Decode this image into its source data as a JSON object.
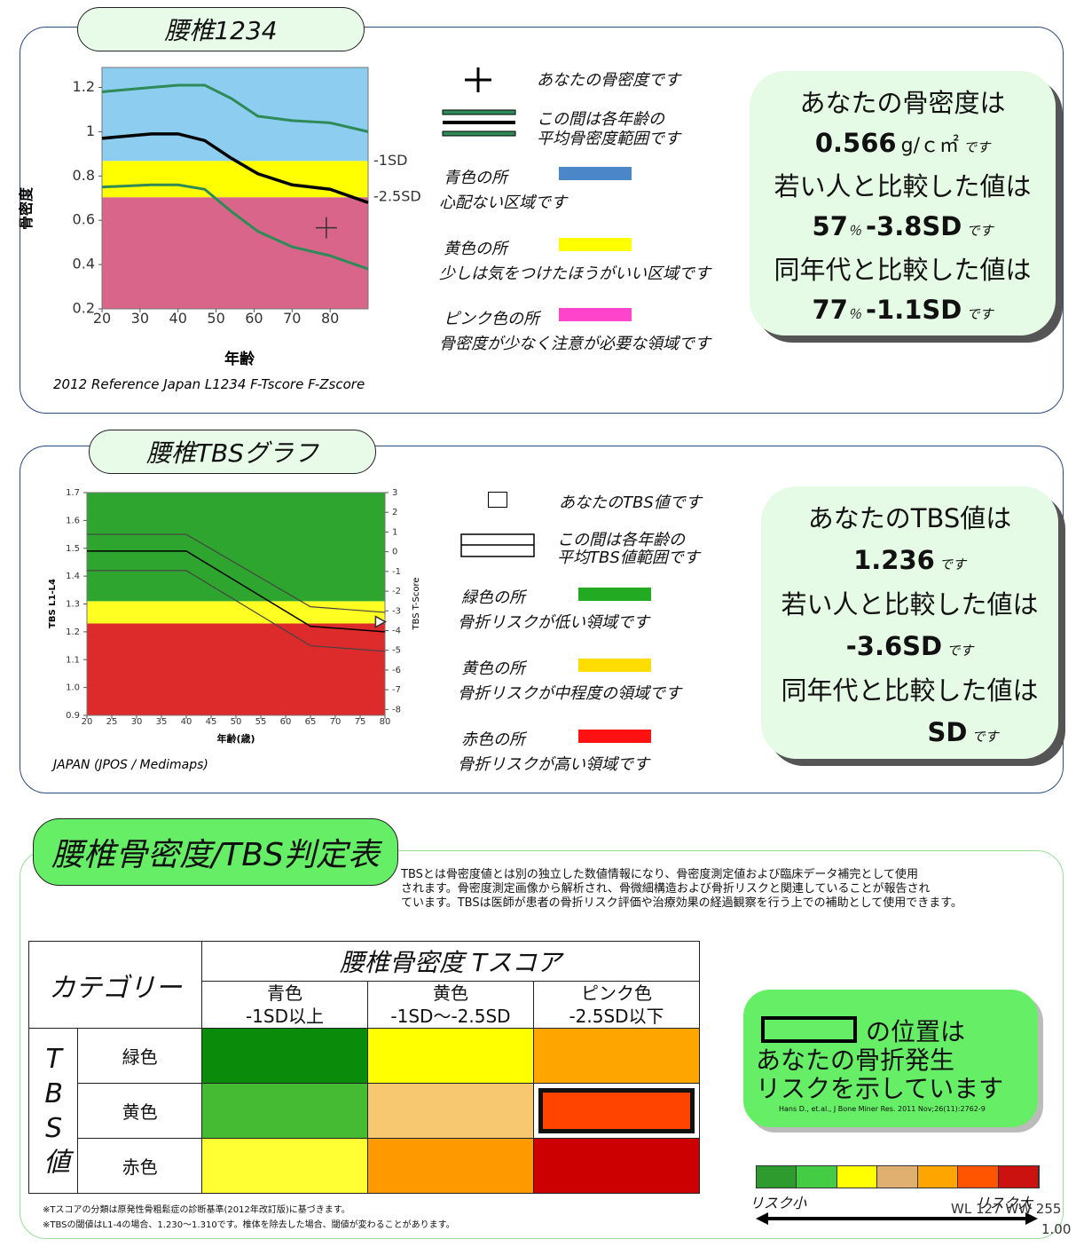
{
  "chart_data": [
    {
      "type": "line",
      "ylabel": "骨密度",
      "xlabel": "年齢",
      "note": "2012 Reference Japan L1234 F-Tscore F-Zscore",
      "xlim": [
        20,
        90
      ],
      "ylim": [
        0.2,
        1.29
      ],
      "xticks": [
        20,
        30,
        40,
        50,
        60,
        70,
        80
      ],
      "yticks": [
        0.2,
        0.4,
        0.6,
        0.8,
        1,
        1.2
      ],
      "zones": [
        {
          "ymin": 0.2,
          "ymax": 0.704,
          "color": "#d9668a"
        },
        {
          "ymin": 0.704,
          "ymax": 0.868,
          "color": "#ffff00",
          "label": "-2.5SD"
        },
        {
          "ymin": 0.868,
          "ymax": 1.29,
          "color": "#8ccdf0",
          "label": "-1SD"
        }
      ],
      "x": [
        20,
        33,
        40,
        47,
        54,
        61,
        70,
        80,
        90
      ],
      "series": [
        {
          "color": "#2e8b57",
          "values": [
            1.18,
            1.2,
            1.21,
            1.21,
            1.15,
            1.07,
            1.05,
            1.04,
            1.0
          ]
        },
        {
          "color": "#000000",
          "values": [
            0.97,
            0.99,
            0.99,
            0.96,
            0.88,
            0.81,
            0.76,
            0.74,
            0.68
          ]
        },
        {
          "color": "#2e8b57",
          "values": [
            0.75,
            0.76,
            0.76,
            0.74,
            0.64,
            0.55,
            0.48,
            0.44,
            0.38
          ]
        }
      ],
      "point": {
        "x": 79,
        "y": 0.566,
        "marker": "plus"
      }
    },
    {
      "type": "line",
      "ylabel": "TBS L1-L4",
      "y2label": "TBS T-Score",
      "xlabel": "年齢(歳)",
      "note": "JAPAN (JPOS / Medimaps)",
      "xlim": [
        20,
        80
      ],
      "ylim": [
        0.9,
        1.7
      ],
      "y2lim": [
        -8.3,
        3
      ],
      "xticks": [
        20,
        25,
        30,
        35,
        40,
        45,
        50,
        55,
        60,
        65,
        70,
        75,
        80
      ],
      "yticks": [
        0.9,
        {
          "value": 1,
          "label": "1.0"
        },
        1.1,
        1.2,
        1.3,
        1.4,
        1.5,
        1.6,
        1.7
      ],
      "y2ticks": [
        3,
        2,
        1,
        0,
        -1,
        -2,
        -3,
        -4,
        -5,
        -6,
        -7,
        -8
      ],
      "zones": [
        {
          "ymin": 0.9,
          "ymax": 1.23,
          "color": "#dd2a2a"
        },
        {
          "ymin": 1.23,
          "ymax": 1.31,
          "color": "#ffff22"
        },
        {
          "ymin": 1.31,
          "ymax": 1.7,
          "color": "#2ea52e"
        }
      ],
      "x": [
        20,
        40,
        65,
        80
      ],
      "series": [
        {
          "color": "#444444",
          "values": [
            1.55,
            1.55,
            1.29,
            1.27
          ]
        },
        {
          "color": "#000000",
          "values": [
            1.49,
            1.49,
            1.22,
            1.2
          ]
        },
        {
          "color": "#444444",
          "values": [
            1.42,
            1.42,
            1.15,
            1.13
          ]
        }
      ],
      "point": {
        "x": 79,
        "y": 1.236,
        "marker": "triangle"
      }
    }
  ],
  "bmd_panel": {
    "title": "腰椎1234",
    "legend": {
      "marker": "あなたの骨密度です",
      "range": [
        "この間は各年齢の",
        "平均骨密度範囲です"
      ],
      "zones": [
        {
          "name": "青色の所",
          "text": "心配ない区域です",
          "color": "#4a86c8"
        },
        {
          "name": "黄色の所",
          "text": "少しは気をつけたほうがいい区域です",
          "color": "#ffff00"
        },
        {
          "name": "ピンク色の所",
          "text": "骨密度が少なく注意が必要な領域です",
          "color": "#ff44cc"
        }
      ]
    },
    "result": {
      "heading": "あなたの骨密度は",
      "value": "0.566",
      "unit": "g/ｃ㎡",
      "young_heading": "若い人と比較した値は",
      "young_percent": "57",
      "percent_sign": "％",
      "young_sd": "-3.8SD",
      "age_heading": "同年代と比較した値は",
      "age_percent": "77",
      "age_sd": "-1.1SD",
      "suffix": "です"
    }
  },
  "tbs_panel": {
    "title": "腰椎TBSグラフ",
    "legend": {
      "marker": "あなたのTBS値です",
      "range": [
        "この間は各年齢の",
        "平均TBS値範囲です"
      ],
      "zones": [
        {
          "name": "緑色の所",
          "text": "骨折リスクが低い領域です",
          "color": "#22aa22"
        },
        {
          "name": "黄色の所",
          "text": "骨折リスクが中程度の領域です",
          "color": "#ffdd00"
        },
        {
          "name": "赤色の所",
          "text": "骨折リスクが高い領域です",
          "color": "#ff1111"
        }
      ]
    },
    "result": {
      "heading": "あなたのTBS値は",
      "value": "1.236",
      "young_heading": "若い人と比較した値は",
      "young_sd": "-3.6SD",
      "age_heading": "同年代と比較した値は",
      "age_sd": "SD",
      "suffix": "です"
    }
  },
  "judgment": {
    "title": "腰椎骨密度/TBS判定表",
    "description": [
      "TBSとは骨密度値とは別の独立した数値情報になり、骨密度測定値および臨床データ補完として使用",
      "されます。骨密度測定画像から解析され、骨微細構造および骨折リスクと関連していることが報告され",
      "ています。TBSは医師が患者の骨折リスク評価や治療効果の経過観察を行う上での補助として使用できます。"
    ],
    "table": {
      "corner": "カテゴリー",
      "column_group": "腰椎骨密度 Tスコア",
      "columns": [
        {
          "name": "青色",
          "range": "-1SD以上"
        },
        {
          "name": "黄色",
          "range": "-1SD～-2.5SD"
        },
        {
          "name": "ピンク色",
          "range": "-2.5SD以下"
        }
      ],
      "row_group": "TBS値",
      "rows": [
        "緑色",
        "黄色",
        "赤色"
      ],
      "cell_colors": [
        [
          "#0a8c0a",
          "#ffff00",
          "#ffa500"
        ],
        [
          "#44bb33",
          "#f8c870",
          "#ff4400"
        ],
        [
          "#ffff33",
          "#ff9900",
          "#cc0000"
        ]
      ],
      "selected": [
        1,
        2
      ]
    },
    "notes": [
      "※Tスコアの分類は原発性骨粗鬆症の診断基準(2012年改訂版)に基づきます。",
      "※TBSの閾値はL1-4の場合、1.230～1.310です。椎体を除去した場合、閾値が変わることがあります。"
    ],
    "callout": {
      "lines": [
        "の位置は",
        "あなたの骨折発生",
        "リスクを示しています"
      ],
      "citation": "Hans D., et.al., J Bone Miner Res. 2011 Nov;26(11):2762-9"
    },
    "risk_scale": {
      "colors": [
        "#2e9b2e",
        "#44cc44",
        "#ffff00",
        "#e0b070",
        "#ffa500",
        "#ff5500",
        "#cc1111"
      ],
      "low": "リスク小",
      "high": "リスク大"
    },
    "overlay": {
      "window": "WL 127 WW 255",
      "zoom": "1.00"
    }
  }
}
